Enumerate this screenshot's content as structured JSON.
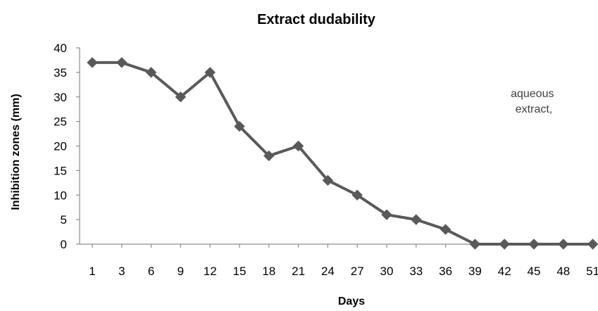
{
  "chart_data": {
    "type": "line",
    "title": "Extract dudability",
    "xlabel": "Days",
    "ylabel": "Inhibition zones (mm)",
    "categories": [
      "1",
      "3",
      "6",
      "9",
      "12",
      "15",
      "18",
      "21",
      "24",
      "27",
      "30",
      "33",
      "36",
      "39",
      "42",
      "45",
      "48",
      "51"
    ],
    "series": [
      {
        "values": [
          37,
          37,
          35,
          30,
          35,
          24,
          18,
          20,
          13,
          10,
          6,
          5,
          3,
          0,
          0,
          0,
          0,
          0
        ]
      }
    ],
    "ylim": [
      0,
      40
    ],
    "yticks": [
      "0",
      "5",
      "10",
      "15",
      "20",
      "25",
      "30",
      "35",
      "40"
    ],
    "grid": false,
    "legend": "none",
    "annotation": [
      "aqueous",
      "extract,"
    ],
    "colors": {
      "series_line": "#5a5a5a",
      "marker": "#595959",
      "axis": "#8c8c8c",
      "text": "#000000"
    },
    "marker": "diamond"
  }
}
